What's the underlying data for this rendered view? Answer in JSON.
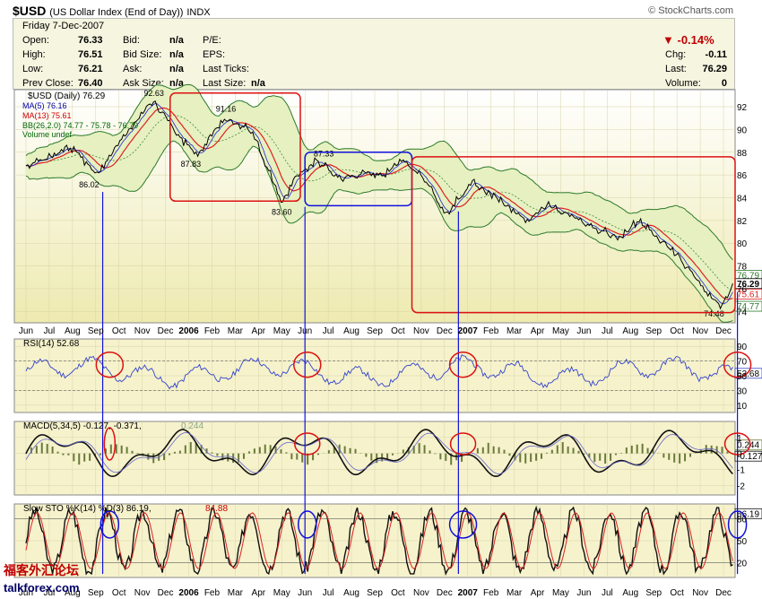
{
  "header": {
    "symbol": "$USD",
    "name": "(US Dollar Index (End of Day))",
    "exchange": "INDX",
    "brand": "© StockCharts.com"
  },
  "quote": {
    "date": "Friday  7-Dec-2007",
    "open_label": "Open:",
    "open": "76.33",
    "high_label": "High:",
    "high": "76.51",
    "low_label": "Low:",
    "low": "76.21",
    "prev_close_label": "Prev Close:",
    "prev_close": "76.40",
    "bid_label": "Bid:",
    "bid": "n/a",
    "bid_size_label": "Bid Size:",
    "bid_size": "n/a",
    "ask_label": "Ask:",
    "ask": "n/a",
    "ask_size_label": "Ask Size:",
    "ask_size": "n/a",
    "pe_label": "P/E:",
    "eps_label": "EPS:",
    "last_ticks_label": "Last Ticks:",
    "last_size_label": "Last Size:",
    "last_size": "n/a",
    "chg_pct": "-0.14%",
    "chg_label": "Chg:",
    "chg": "-0.11",
    "last_label": "Last:",
    "last": "76.29",
    "volume_label": "Volume:",
    "volume": "0",
    "down_color": "#c00000"
  },
  "legend": {
    "price": "$USD (Daily) 76.29",
    "ma5": "MA(5) 76.16",
    "ma13": "MA(13) 75.61",
    "bb": "BB(26,2.0) 74.77 - 75.78 - 76.79",
    "volume": "Volume undef",
    "rsi": "RSI(14) 52.68",
    "macd_main": "MACD(5,34,5) -0.127, -0.371,",
    "macd_hist": "0.244",
    "sto_main": "Slow STO %K(14) %D(3) 86.19,",
    "sto_d": "84.88"
  },
  "watermark": {
    "cn": "福客外汇论坛",
    "en": "talkforex.com"
  },
  "chart_data": [
    {
      "type": "line",
      "name": "price",
      "ylim": [
        73,
        93.5
      ],
      "y_ticks": [
        74,
        76,
        78,
        80,
        82,
        84,
        86,
        88,
        90,
        92
      ],
      "x_labels": [
        "Jun",
        "Jul",
        "Aug",
        "Sep",
        "Oct",
        "Nov",
        "Dec",
        "2006",
        "Feb",
        "Mar",
        "Apr",
        "May",
        "Jun",
        "Jul",
        "Aug",
        "Sep",
        "Oct",
        "Nov",
        "Dec",
        "2007",
        "Feb",
        "Mar",
        "Apr",
        "May",
        "Jun",
        "Jul",
        "Aug",
        "Sep",
        "Oct",
        "Nov",
        "Dec"
      ],
      "anchors": [
        [
          0,
          86.8
        ],
        [
          2,
          88.4
        ],
        [
          3.1,
          86.02
        ],
        [
          4,
          88.8
        ],
        [
          5.5,
          92.63
        ],
        [
          6.5,
          89.5
        ],
        [
          7.4,
          87.83
        ],
        [
          8.6,
          91.16
        ],
        [
          9.7,
          89.8
        ],
        [
          10.3,
          87
        ],
        [
          11.0,
          83.6
        ],
        [
          11.7,
          86
        ],
        [
          12.5,
          87.33
        ],
        [
          13.5,
          85.6
        ],
        [
          14.7,
          86.2
        ],
        [
          15.4,
          85.9
        ],
        [
          16.2,
          87.4
        ],
        [
          17.2,
          85.5
        ],
        [
          18.0,
          82.5
        ],
        [
          19.2,
          85.3
        ],
        [
          20.3,
          84.0
        ],
        [
          21.5,
          82.0
        ],
        [
          22.5,
          83.3
        ],
        [
          23.4,
          82.4
        ],
        [
          24.5,
          81.3
        ],
        [
          25.5,
          80.6
        ],
        [
          26.3,
          82.0
        ],
        [
          27.2,
          80.5
        ],
        [
          28.4,
          78.0
        ],
        [
          29.3,
          75.6
        ],
        [
          29.9,
          74.48
        ],
        [
          30.4,
          76.29
        ]
      ],
      "annotations": [
        "92.63",
        "86.02",
        "87.83",
        "91.16",
        "83.60",
        "87.33",
        "74.48"
      ],
      "right_labels": [
        "76.79",
        "76.29",
        "75.61",
        "74.77"
      ]
    },
    {
      "type": "line",
      "name": "rsi",
      "ylim": [
        0,
        100
      ],
      "y_ticks": [
        10,
        30,
        50,
        70,
        90
      ],
      "last": "52.68"
    },
    {
      "type": "line",
      "name": "macd",
      "ylim": [
        -2.6,
        2
      ],
      "y_ticks": [
        -2,
        -1,
        0,
        1
      ],
      "right_labels": [
        "0.244",
        "-0.127"
      ]
    },
    {
      "type": "line",
      "name": "slow_sto",
      "ylim": [
        0,
        100
      ],
      "y_ticks": [
        20,
        50,
        80
      ],
      "right_labels": [
        "86.19"
      ]
    }
  ]
}
